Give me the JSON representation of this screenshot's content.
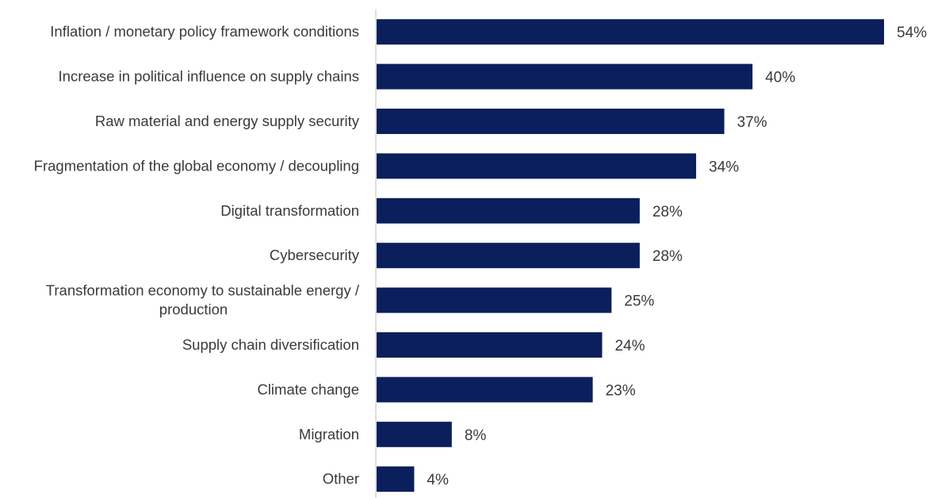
{
  "chart_data": {
    "type": "bar",
    "orientation": "horizontal",
    "categories": [
      [
        "Inflation / monetary policy framework conditions"
      ],
      [
        "Increase in political influence on supply chains"
      ],
      [
        "Raw material and energy supply security"
      ],
      [
        "Fragmentation of the global economy / decoupling"
      ],
      [
        "Digital transformation"
      ],
      [
        "Cybersecurity"
      ],
      [
        "Transformation economy to sustainable energy /",
        "production"
      ],
      [
        "Supply chain diversification"
      ],
      [
        "Climate change"
      ],
      [
        "Migration"
      ],
      [
        "Other"
      ]
    ],
    "values": [
      54,
      40,
      37,
      34,
      28,
      28,
      25,
      24,
      23,
      8,
      4
    ],
    "value_labels": [
      "54%",
      "40%",
      "37%",
      "34%",
      "28%",
      "28%",
      "25%",
      "24%",
      "23%",
      "8%",
      "4%"
    ],
    "unit": "%",
    "xlim": [
      0,
      54
    ],
    "grid": false,
    "legend": "none",
    "colors": {
      "bar": "#0b1f5c",
      "axis": "#bfbfbf",
      "text": "#3a3a3a"
    }
  }
}
